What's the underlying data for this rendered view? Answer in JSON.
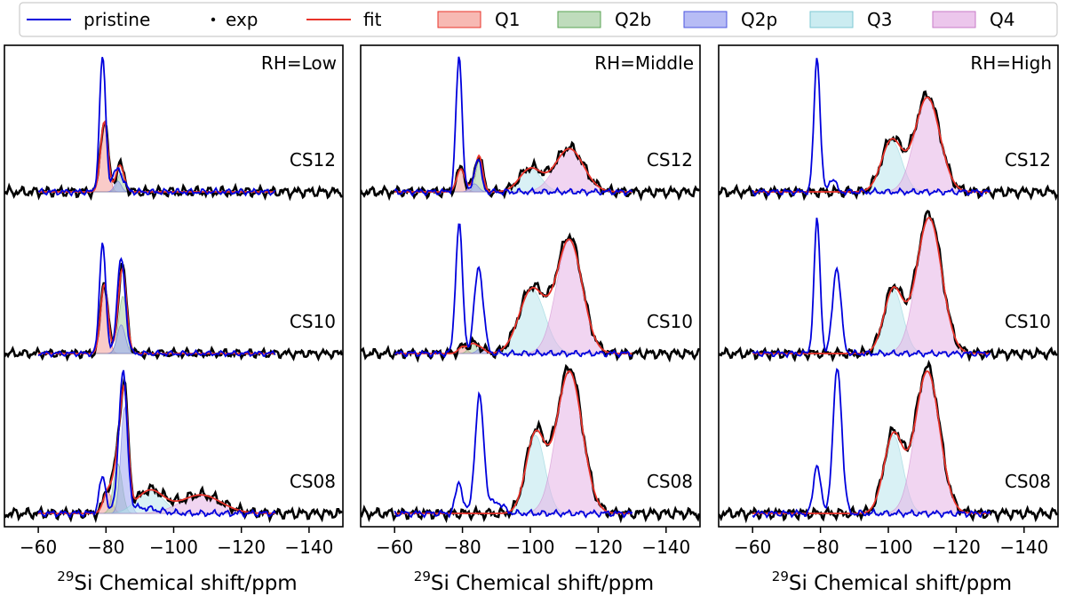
{
  "legend": {
    "items": [
      {
        "key": "pristine",
        "label": "pristine",
        "kind": "line",
        "color": "#0000dd"
      },
      {
        "key": "exp",
        "label": "exp",
        "kind": "marker",
        "color": "#000000"
      },
      {
        "key": "fit",
        "label": "fit",
        "kind": "line",
        "color": "#e8332a"
      },
      {
        "key": "q1",
        "label": "Q1",
        "kind": "patch",
        "color": "#f4a19a",
        "edge": "#e8332a"
      },
      {
        "key": "q2b",
        "label": "Q2b",
        "kind": "patch",
        "color": "#a9d0a5",
        "edge": "#5aa353"
      },
      {
        "key": "q2p",
        "label": "Q2p",
        "kind": "patch",
        "color": "#9fa6f2",
        "edge": "#4b55e0"
      },
      {
        "key": "q3",
        "label": "Q3",
        "kind": "patch",
        "color": "#b9e6ec",
        "edge": "#7cc9d4"
      },
      {
        "key": "q4",
        "label": "Q4",
        "kind": "patch",
        "color": "#e5b3e5",
        "edge": "#c77ac7"
      }
    ]
  },
  "chart_data": [
    {
      "type": "line",
      "title": "RH=Low",
      "xlabel": "29Si Chemical shift/ppm",
      "xlabel_sup": "29",
      "xlabel_main": "Si Chemical shift/ppm",
      "xlim": [
        -50,
        -150
      ],
      "xticks": [
        -60,
        -80,
        -100,
        -120,
        -140
      ],
      "yticks_shown": false,
      "rows": [
        {
          "label": "CS12",
          "pristine": [
            [
              -79,
              1.0,
              0.9
            ],
            [
              -83.5,
              0.17,
              1.5
            ]
          ],
          "components": {
            "q1": [
              [
                -79.5,
                0.52,
                1.1
              ]
            ],
            "q2b": [
              [
                -84.5,
                0.14,
                1.1
              ]
            ],
            "q2p": [
              [
                -83.5,
                0.08,
                1.0
              ]
            ]
          }
        },
        {
          "label": "CS10",
          "pristine": [
            [
              -79,
              0.98,
              0.9
            ],
            [
              -84.5,
              0.82,
              1.2
            ]
          ],
          "components": {
            "q1": [
              [
                -79.5,
                0.6,
                1.1
              ]
            ],
            "q2b": [
              [
                -85,
                0.5,
                1.2
              ]
            ],
            "q2p": [
              [
                -84.5,
                0.25,
                1.2
              ]
            ]
          }
        },
        {
          "label": "CS08",
          "pristine": [
            [
              -79,
              0.25,
              1.0
            ],
            [
              -85,
              0.98,
              1.2
            ],
            [
              -90,
              0.04,
              5.0
            ]
          ],
          "components": {
            "q1": [
              [
                -80.5,
                0.15,
                1.3
              ]
            ],
            "q2b": [
              [
                -83.5,
                0.35,
                1.3
              ]
            ],
            "q2p": [
              [
                -85.5,
                0.75,
                1.1
              ]
            ],
            "q3": [
              [
                -93,
                0.16,
                4.0
              ]
            ],
            "q4": [
              [
                -108,
                0.13,
                6.0
              ]
            ]
          }
        }
      ]
    },
    {
      "type": "line",
      "title": "RH=Middle",
      "xlabel": "29Si Chemical shift/ppm",
      "xlabel_sup": "29",
      "xlabel_main": "Si Chemical shift/ppm",
      "xlim": [
        -50,
        -150
      ],
      "xticks": [
        -60,
        -80,
        -100,
        -120,
        -140
      ],
      "yticks_shown": false,
      "rows": [
        {
          "label": "CS12",
          "pristine": [
            [
              -79,
              1.0,
              0.9
            ],
            [
              -84.5,
              0.25,
              1.0
            ]
          ],
          "components": {
            "q1": [
              [
                -79.5,
                0.17,
                1.2
              ]
            ],
            "q2b": [
              [
                -85,
                0.24,
                1.0
              ]
            ],
            "q2p": [
              [
                -83.5,
                0.06,
                1.2
              ]
            ],
            "q3": [
              [
                -100,
                0.17,
                3.2
              ]
            ],
            "q4": [
              [
                -111.5,
                0.32,
                4.2
              ]
            ]
          }
        },
        {
          "label": "CS10",
          "pristine": [
            [
              -79,
              0.98,
              1.0
            ],
            [
              -84.8,
              0.65,
              1.3
            ]
          ],
          "components": {
            "q1": [
              [
                -80,
                0.05,
                1.2
              ]
            ],
            "q2b": [
              [
                -83,
                0.07,
                1.2
              ]
            ],
            "q2p": [
              [
                -85.5,
                0.04,
                1.2
              ]
            ],
            "q3": [
              [
                -100.5,
                0.48,
                3.8
              ]
            ],
            "q4": [
              [
                -111.5,
                0.85,
                3.8
              ]
            ]
          }
        },
        {
          "label": "CS08",
          "pristine": [
            [
              -79,
              0.22,
              1.0
            ],
            [
              -85,
              0.82,
              1.3
            ],
            [
              -90,
              0.08,
              2.0
            ]
          ],
          "components": {
            "q3": [
              [
                -101.5,
                0.55,
                2.8
              ]
            ],
            "q4": [
              [
                -111.5,
                1.0,
                3.8
              ]
            ]
          }
        }
      ]
    },
    {
      "type": "line",
      "title": "RH=High",
      "xlabel": "29Si Chemical shift/ppm",
      "xlabel_sup": "29",
      "xlabel_main": "Si Chemical shift/ppm",
      "xlim": [
        -50,
        -150
      ],
      "xticks": [
        -60,
        -80,
        -100,
        -120,
        -140
      ],
      "yticks_shown": false,
      "rows": [
        {
          "label": "CS12",
          "pristine": [
            [
              -79,
              1.0,
              0.9
            ],
            [
              -83.5,
              0.1,
              1.0
            ]
          ],
          "components": {
            "q3": [
              [
                -101,
                0.38,
                3.0
              ]
            ],
            "q4": [
              [
                -111.5,
                0.7,
                3.7
              ]
            ]
          }
        },
        {
          "label": "CS10",
          "pristine": [
            [
              -79,
              1.0,
              0.9
            ],
            [
              -84.8,
              0.65,
              1.2
            ]
          ],
          "components": {
            "q3": [
              [
                -101.5,
                0.48,
                2.8
              ]
            ],
            "q4": [
              [
                -112,
                1.02,
                3.7
              ]
            ]
          }
        },
        {
          "label": "CS08",
          "pristine": [
            [
              -79,
              0.35,
              1.0
            ],
            [
              -85,
              1.02,
              1.3
            ]
          ],
          "components": {
            "q3": [
              [
                -101.5,
                0.55,
                2.8
              ]
            ],
            "q4": [
              [
                -111.5,
                1.0,
                3.6
              ]
            ]
          }
        }
      ]
    }
  ]
}
